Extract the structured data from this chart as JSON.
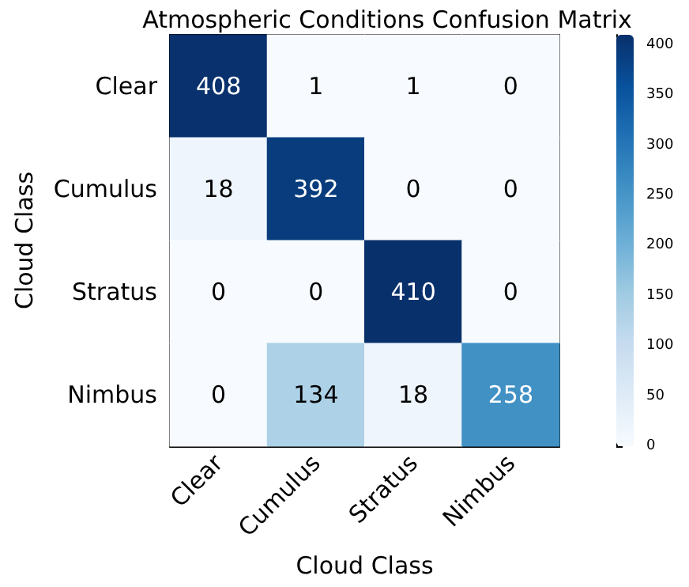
{
  "chart_data": {
    "type": "heatmap",
    "title": "Atmospheric Conditions Confusion Matrix",
    "xlabel": "Cloud Class",
    "ylabel": "Cloud Class",
    "categories": [
      "Clear",
      "Cumulus",
      "Stratus",
      "Nimbus"
    ],
    "y_categories": [
      "Clear",
      "Cumulus",
      "Stratus",
      "Nimbus"
    ],
    "cells": [
      [
        408,
        1,
        1,
        0
      ],
      [
        18,
        392,
        0,
        0
      ],
      [
        0,
        0,
        410,
        0
      ],
      [
        0,
        134,
        18,
        258
      ]
    ],
    "clim": [
      0,
      410
    ],
    "cticks": [
      0,
      50,
      100,
      150,
      200,
      250,
      300,
      350,
      400
    ],
    "data_labels": true
  }
}
